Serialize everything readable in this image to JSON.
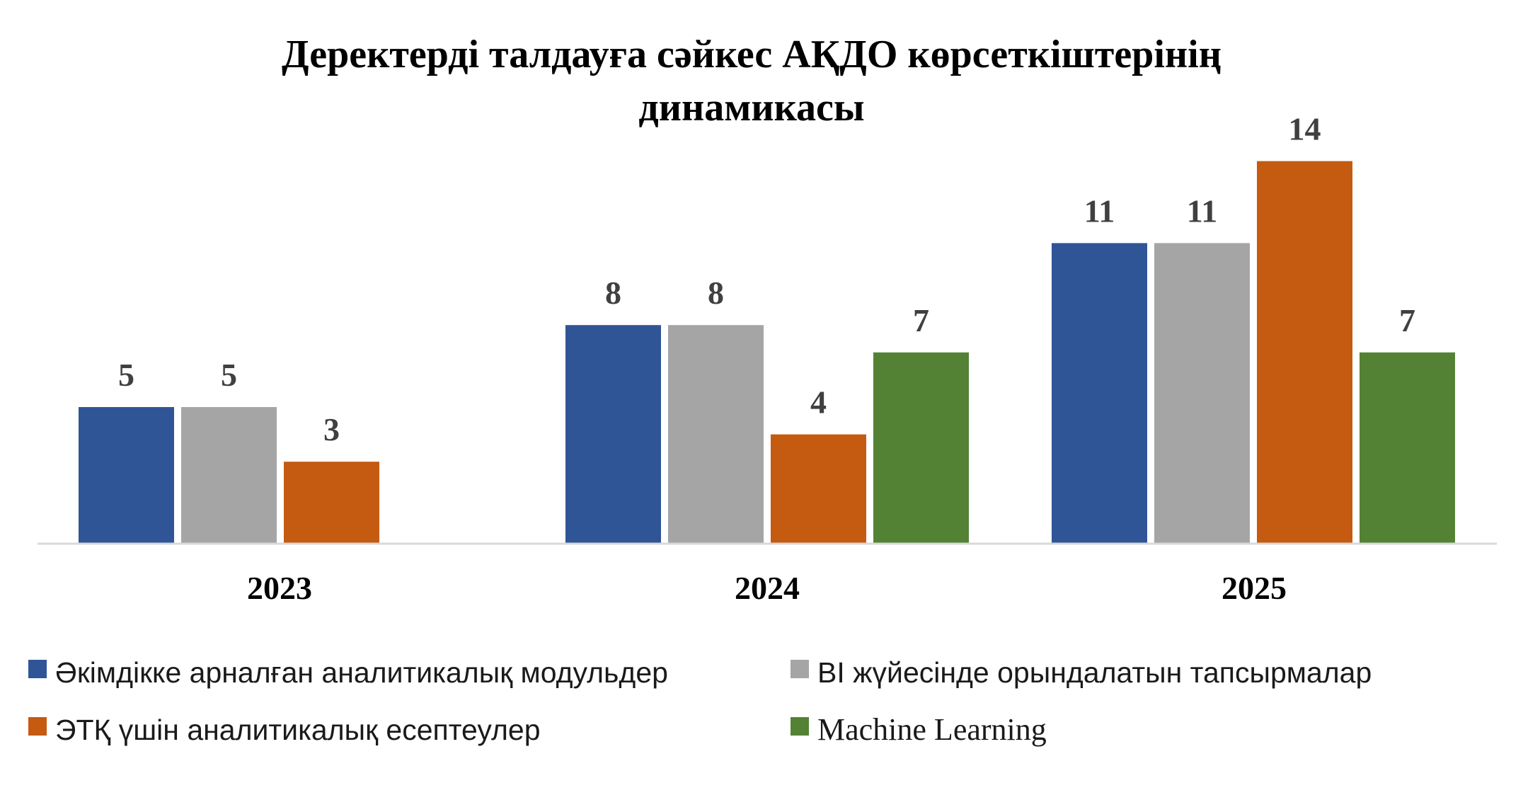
{
  "chart_data": {
    "type": "bar",
    "title": "Деректерді талдауға сәйкес АҚДО көрсеткіштерінің динамикасы",
    "title_lines": [
      "Деректерді талдауға сәйкес АҚДО көрсеткіштерінің",
      "динамикасы"
    ],
    "categories": [
      "2023",
      "2024",
      "2025"
    ],
    "series": [
      {
        "name": "Әкімдікке арналған аналитикалық модульдер",
        "color": "#2F5597",
        "values": [
          5,
          8,
          11
        ]
      },
      {
        "name": "BI жүйесінде орындалатын тапсырмалар",
        "color": "#A5A5A5",
        "values": [
          5,
          8,
          11
        ]
      },
      {
        "name": "ЭТҚ үшін аналитикалық есептеулер",
        "color": "#C55A11",
        "values": [
          3,
          4,
          14
        ]
      },
      {
        "name": "Machine Learning",
        "color": "#548235",
        "values": [
          null,
          7,
          7
        ]
      }
    ],
    "ylim": [
      0,
      14
    ],
    "grid": false,
    "legend_position": "bottom",
    "data_labels": true,
    "axis_line_color": "#D9D9D9"
  }
}
